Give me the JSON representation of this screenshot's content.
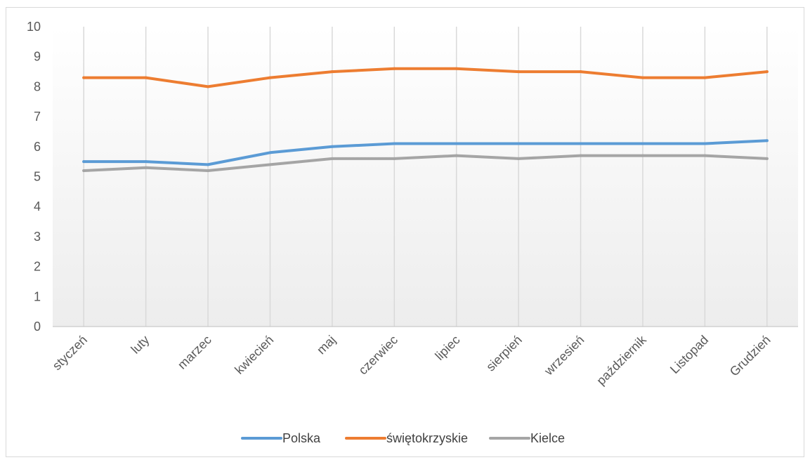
{
  "chart_data": {
    "type": "line",
    "categories": [
      "styczeń",
      "luty",
      "marzec",
      "kwiecień",
      "maj",
      "czerwiec",
      "lipiec",
      "sierpień",
      "wrzesień",
      "październik",
      "Listopad",
      "Grudzień"
    ],
    "series": [
      {
        "name": "Polska",
        "color": "#5b9bd5",
        "values": [
          5.5,
          5.5,
          5.4,
          5.8,
          6.0,
          6.1,
          6.1,
          6.1,
          6.1,
          6.1,
          6.1,
          6.2
        ]
      },
      {
        "name": "świętokrzyskie",
        "color": "#ed7d31",
        "values": [
          8.3,
          8.3,
          8.0,
          8.3,
          8.5,
          8.6,
          8.6,
          8.5,
          8.5,
          8.3,
          8.3,
          8.5
        ]
      },
      {
        "name": "Kielce",
        "color": "#a5a5a5",
        "values": [
          5.2,
          5.3,
          5.2,
          5.4,
          5.6,
          5.6,
          5.7,
          5.6,
          5.7,
          5.7,
          5.7,
          5.6
        ]
      }
    ],
    "title": "",
    "xlabel": "",
    "ylabel": "",
    "ylim": [
      0,
      10
    ],
    "yticks": [
      "0",
      "1",
      "2",
      "3",
      "4",
      "5",
      "6",
      "7",
      "8",
      "9",
      "10"
    ],
    "grid": "vertical",
    "legend_position": "bottom",
    "background": "gradient-white-to-light-gray"
  }
}
